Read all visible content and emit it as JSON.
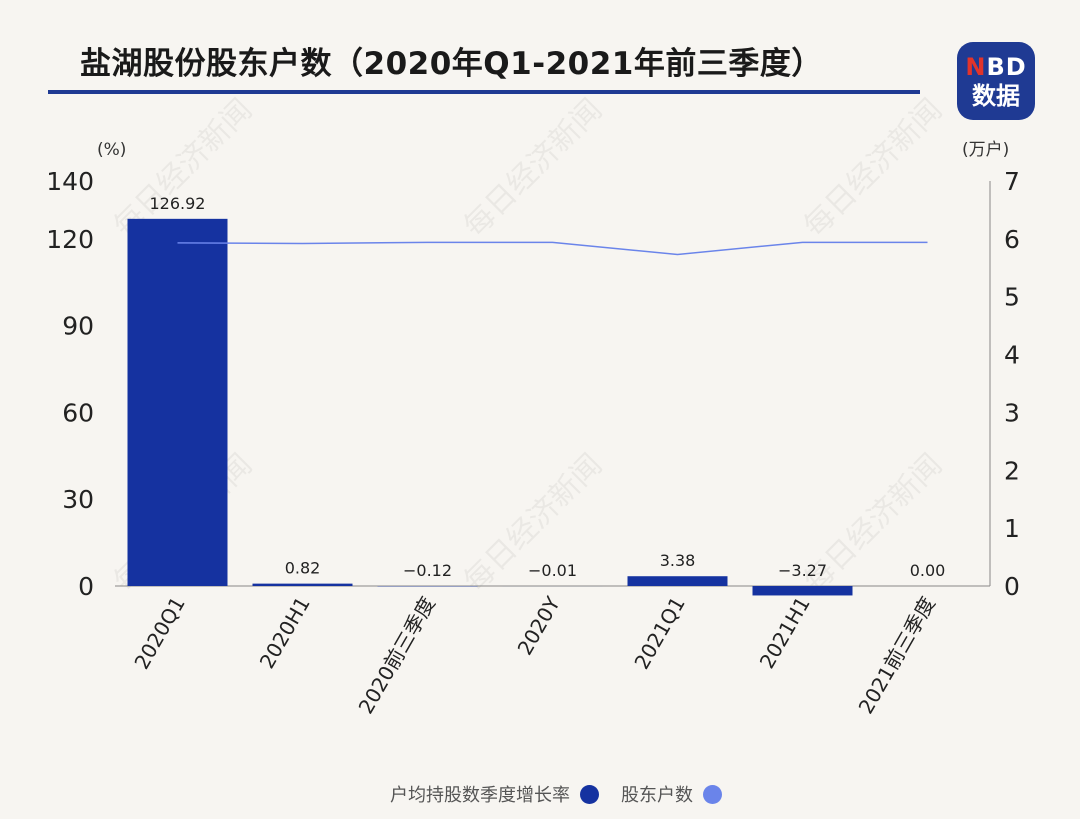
{
  "header": {
    "title": "盐湖股份股东户数（2020年Q1-2021年前三季度）",
    "logo_top": "NBD",
    "logo_bottom": "数据"
  },
  "watermark": "每日经济新闻",
  "colors": {
    "bar": "#1532a0",
    "line": "#6a84ea",
    "title_rule": "#1f3a93"
  },
  "chart_data": {
    "type": "bar",
    "categories": [
      "2020Q1",
      "2020H1",
      "2020前三季度",
      "2020Y",
      "2021Q1",
      "2021H1",
      "2021前三季度"
    ],
    "series": [
      {
        "name": "户均持股数季度增长率",
        "type": "bar",
        "axis": "left",
        "values": [
          126.92,
          0.82,
          -0.12,
          -0.01,
          3.38,
          -3.27,
          0.0
        ],
        "labels": [
          "126.92",
          "0.82",
          "−0.12",
          "−0.01",
          "3.38",
          "−3.27",
          "0.00"
        ]
      },
      {
        "name": "股东户数",
        "type": "line",
        "axis": "right",
        "values": [
          5.93,
          5.92,
          5.94,
          5.94,
          5.73,
          5.94,
          5.94
        ]
      }
    ],
    "y_left": {
      "unit": "(%)",
      "ylim": [
        0,
        140
      ],
      "ticks": [
        0,
        30,
        60,
        90,
        120,
        140
      ]
    },
    "y_right": {
      "unit": "(万户)",
      "ylim": [
        0,
        7
      ],
      "ticks": [
        0,
        1,
        2,
        3,
        4,
        5,
        6,
        7
      ]
    },
    "legend": "bottom"
  }
}
